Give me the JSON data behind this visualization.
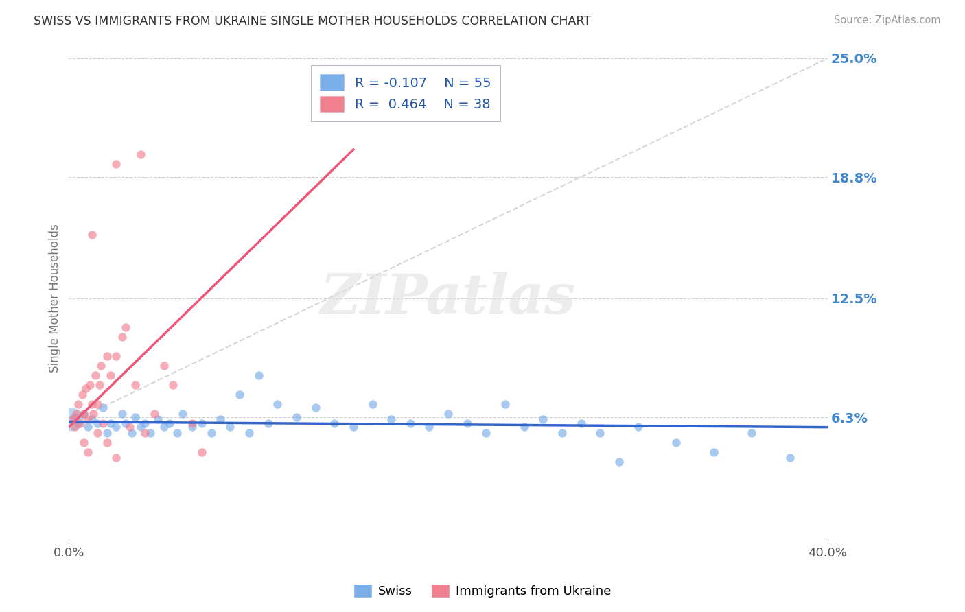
{
  "title": "SWISS VS IMMIGRANTS FROM UKRAINE SINGLE MOTHER HOUSEHOLDS CORRELATION CHART",
  "source_text": "Source: ZipAtlas.com",
  "watermark": "ZIPatlas",
  "ylabel": "Single Mother Households",
  "xlim": [
    0.0,
    40.0
  ],
  "ylim": [
    0.0,
    25.0
  ],
  "ytick_values": [
    0.0,
    6.3,
    12.5,
    18.8,
    25.0
  ],
  "grid_color": "#cccccc",
  "swiss_color": "#7aaee8",
  "ukraine_color": "#f08090",
  "swiss_R": -0.107,
  "swiss_N": 55,
  "ukraine_R": 0.464,
  "ukraine_N": 38,
  "background_color": "#ffffff",
  "title_color": "#333333",
  "right_tick_color": "#4488cc",
  "swiss_scatter": [
    [
      0.3,
      6.3
    ],
    [
      0.5,
      6.0
    ],
    [
      0.8,
      6.5
    ],
    [
      1.0,
      5.8
    ],
    [
      1.2,
      6.2
    ],
    [
      1.5,
      6.0
    ],
    [
      1.8,
      6.8
    ],
    [
      2.0,
      5.5
    ],
    [
      2.2,
      6.0
    ],
    [
      2.5,
      5.8
    ],
    [
      2.8,
      6.5
    ],
    [
      3.0,
      6.0
    ],
    [
      3.3,
      5.5
    ],
    [
      3.5,
      6.3
    ],
    [
      3.8,
      5.8
    ],
    [
      4.0,
      6.0
    ],
    [
      4.3,
      5.5
    ],
    [
      4.7,
      6.2
    ],
    [
      5.0,
      5.8
    ],
    [
      5.3,
      6.0
    ],
    [
      5.7,
      5.5
    ],
    [
      6.0,
      6.5
    ],
    [
      6.5,
      5.8
    ],
    [
      7.0,
      6.0
    ],
    [
      7.5,
      5.5
    ],
    [
      8.0,
      6.2
    ],
    [
      8.5,
      5.8
    ],
    [
      9.0,
      7.5
    ],
    [
      9.5,
      5.5
    ],
    [
      10.0,
      8.5
    ],
    [
      10.5,
      6.0
    ],
    [
      11.0,
      7.0
    ],
    [
      12.0,
      6.3
    ],
    [
      13.0,
      6.8
    ],
    [
      14.0,
      6.0
    ],
    [
      15.0,
      5.8
    ],
    [
      16.0,
      7.0
    ],
    [
      17.0,
      6.2
    ],
    [
      18.0,
      6.0
    ],
    [
      19.0,
      5.8
    ],
    [
      20.0,
      6.5
    ],
    [
      21.0,
      6.0
    ],
    [
      22.0,
      5.5
    ],
    [
      23.0,
      7.0
    ],
    [
      24.0,
      5.8
    ],
    [
      25.0,
      6.2
    ],
    [
      26.0,
      5.5
    ],
    [
      27.0,
      6.0
    ],
    [
      28.0,
      5.5
    ],
    [
      29.0,
      4.0
    ],
    [
      30.0,
      5.8
    ],
    [
      32.0,
      5.0
    ],
    [
      34.0,
      4.5
    ],
    [
      36.0,
      5.5
    ],
    [
      38.0,
      4.2
    ]
  ],
  "ukraine_scatter": [
    [
      0.2,
      6.2
    ],
    [
      0.3,
      5.8
    ],
    [
      0.4,
      6.5
    ],
    [
      0.5,
      7.0
    ],
    [
      0.6,
      6.0
    ],
    [
      0.7,
      7.5
    ],
    [
      0.8,
      6.5
    ],
    [
      0.9,
      7.8
    ],
    [
      1.0,
      6.2
    ],
    [
      1.1,
      8.0
    ],
    [
      1.2,
      7.0
    ],
    [
      1.3,
      6.5
    ],
    [
      1.4,
      8.5
    ],
    [
      1.5,
      7.0
    ],
    [
      1.6,
      8.0
    ],
    [
      1.7,
      9.0
    ],
    [
      1.8,
      6.0
    ],
    [
      2.0,
      9.5
    ],
    [
      2.2,
      8.5
    ],
    [
      2.5,
      9.5
    ],
    [
      2.8,
      10.5
    ],
    [
      3.0,
      11.0
    ],
    [
      3.5,
      8.0
    ],
    [
      4.0,
      5.5
    ],
    [
      4.5,
      6.5
    ],
    [
      5.0,
      9.0
    ],
    [
      5.5,
      8.0
    ],
    [
      6.5,
      6.0
    ],
    [
      7.0,
      4.5
    ],
    [
      3.2,
      5.8
    ],
    [
      2.0,
      5.0
    ],
    [
      1.5,
      5.5
    ],
    [
      0.8,
      5.0
    ],
    [
      1.0,
      4.5
    ],
    [
      2.5,
      4.2
    ],
    [
      2.5,
      19.5
    ],
    [
      1.2,
      15.8
    ],
    [
      3.8,
      20.0
    ]
  ],
  "swiss_scatter_size": 80,
  "ukraine_scatter_size": 80,
  "swiss_alpha": 0.65,
  "ukraine_alpha": 0.65,
  "swiss_big_size": 600,
  "swiss_big_x": 0.15,
  "swiss_big_y": 6.2
}
